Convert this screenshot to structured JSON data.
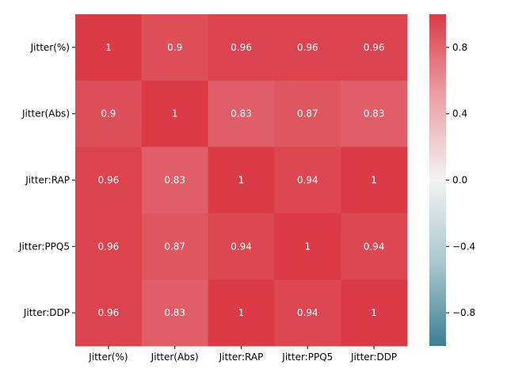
{
  "chart_data": {
    "type": "heatmap",
    "title": "",
    "xlabel": "",
    "ylabel": "",
    "x_categories": [
      "Jitter(%)",
      "Jitter(Abs)",
      "Jitter:RAP",
      "Jitter:PPQ5",
      "Jitter:DDP"
    ],
    "y_categories": [
      "Jitter(%)",
      "Jitter(Abs)",
      "Jitter:RAP",
      "Jitter:PPQ5",
      "Jitter:DDP"
    ],
    "values": [
      [
        1,
        0.9,
        0.96,
        0.96,
        0.96
      ],
      [
        0.9,
        1,
        0.83,
        0.87,
        0.83
      ],
      [
        0.96,
        0.83,
        1,
        0.94,
        1
      ],
      [
        0.96,
        0.87,
        0.94,
        1,
        0.94
      ],
      [
        0.96,
        0.83,
        1,
        0.94,
        1
      ]
    ],
    "annotations": true,
    "colorbar": {
      "range": [
        -1,
        1
      ],
      "ticks": [
        0.8,
        0.4,
        0.0,
        -0.4,
        -0.8
      ],
      "tick_labels": [
        "0.8",
        "0.4",
        "0.0",
        "−0.4",
        "−0.8"
      ],
      "placement": "right"
    },
    "colormap": {
      "type": "diverging",
      "stops": [
        {
          "value": -1,
          "color": "#3d7f92"
        },
        {
          "value": -0.5,
          "color": "#a9c7cf"
        },
        {
          "value": 0,
          "color": "#f2f2f2"
        },
        {
          "value": 0.5,
          "color": "#eba2a8"
        },
        {
          "value": 1,
          "color": "#da3b46"
        }
      ]
    }
  }
}
